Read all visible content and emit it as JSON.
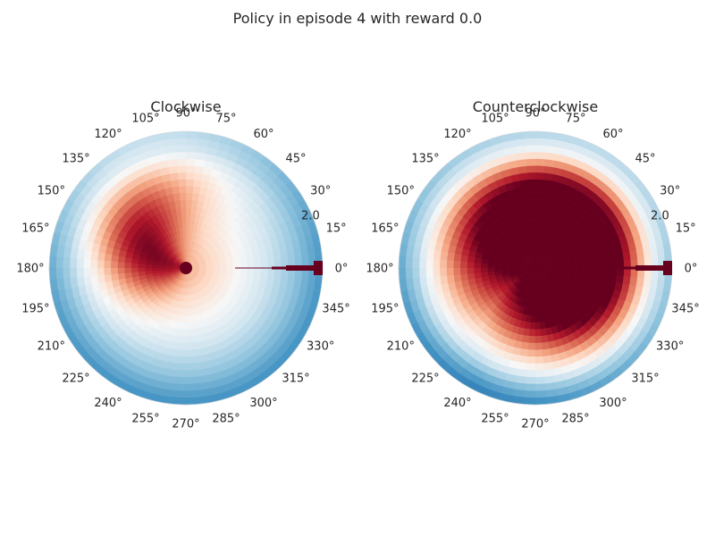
{
  "figure": {
    "suptitle": "Policy in episode 4 with reward 0.0"
  },
  "colormap": {
    "name": "RdBu",
    "stops": [
      "#67001f",
      "#b2182b",
      "#d6604d",
      "#f4a582",
      "#fddbc7",
      "#f7f7f7",
      "#d1e5f0",
      "#92c5de",
      "#4393c3",
      "#2166ac",
      "#053061"
    ]
  },
  "chart_data": [
    {
      "type": "heatmap",
      "projection": "polar",
      "title": "Clockwise",
      "theta_ticks_deg": [
        0,
        15,
        30,
        45,
        60,
        75,
        90,
        105,
        120,
        135,
        150,
        165,
        180,
        195,
        210,
        225,
        240,
        255,
        270,
        285,
        300,
        315,
        330,
        345
      ],
      "theta_tick_labels": [
        "0°",
        "15°",
        "30°",
        "45°",
        "60°",
        "75°",
        "90°",
        "105°",
        "120°",
        "135°",
        "150°",
        "165°",
        "180°",
        "195°",
        "210°",
        "225°",
        "240°",
        "255°",
        "270°",
        "285°",
        "300°",
        "315°",
        "330°",
        "345°"
      ],
      "r_tick_labels": [
        "2.0"
      ],
      "r_lim": [
        0,
        2.0
      ],
      "n_angle_bins": 72,
      "n_radius_bins": 20,
      "grid": false,
      "field": {
        "base": 0.12,
        "amp": 0.55,
        "twist_deg": -70,
        "phase_deg": 175,
        "reach_deg": 65,
        "center_bias": 0.05
      },
      "marker": {
        "theta_deg": 180,
        "r": 0,
        "color": "#67001f"
      },
      "wedge": {
        "theta_deg": 0,
        "color": "#67001f"
      }
    },
    {
      "type": "heatmap",
      "projection": "polar",
      "title": "Counterclockwise",
      "theta_ticks_deg": [
        0,
        15,
        30,
        45,
        60,
        75,
        90,
        105,
        120,
        135,
        150,
        165,
        180,
        195,
        210,
        225,
        240,
        255,
        270,
        285,
        300,
        315,
        330,
        345
      ],
      "theta_tick_labels": [
        "0°",
        "15°",
        "30°",
        "45°",
        "60°",
        "75°",
        "90°",
        "105°",
        "120°",
        "135°",
        "150°",
        "165°",
        "180°",
        "195°",
        "210°",
        "225°",
        "240°",
        "255°",
        "270°",
        "285°",
        "300°",
        "315°",
        "330°",
        "345°"
      ],
      "r_tick_labels": [
        "2.0"
      ],
      "r_lim": [
        0,
        2.0
      ],
      "n_angle_bins": 72,
      "n_radius_bins": 20,
      "grid": false,
      "field": {
        "base": -0.02,
        "amp": 0.95,
        "twist_deg": 40,
        "phase_deg": 25,
        "reach_deg": 150,
        "center_bias": 0.55
      },
      "marker": {
        "theta_deg": 180,
        "r": 0,
        "color": "#67001f"
      },
      "wedge": {
        "theta_deg": 0,
        "color": "#67001f"
      }
    }
  ]
}
